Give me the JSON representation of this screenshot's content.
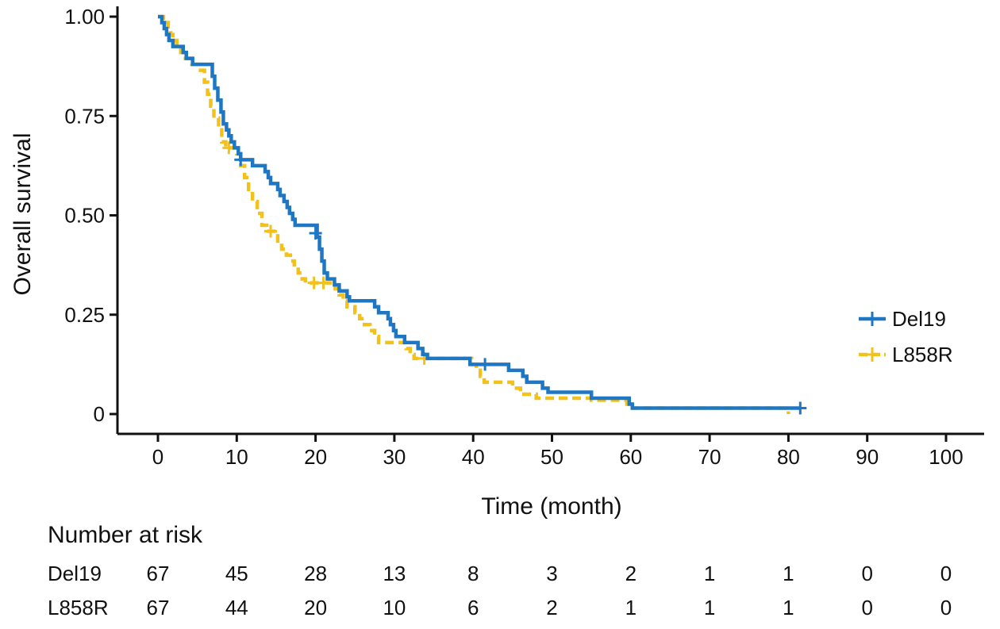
{
  "chart_data": {
    "type": "line",
    "subtype": "kaplan-meier step",
    "xlabel": "Time (month)",
    "ylabel": "Overall survival",
    "xlim": [
      0,
      100
    ],
    "ylim": [
      0,
      1
    ],
    "x_ticks": [
      0,
      10,
      20,
      30,
      40,
      50,
      60,
      70,
      80,
      90,
      100
    ],
    "x_tick_labels": [
      "0",
      "10",
      "20",
      "30",
      "40",
      "50",
      "60",
      "70",
      "80",
      "90",
      "100"
    ],
    "y_ticks": [
      0,
      0.25,
      0.5,
      0.75,
      1.0
    ],
    "y_tick_labels": [
      "0",
      "0.25",
      "0.50",
      "0.75",
      "1.00"
    ],
    "grid": false,
    "legend_position": "right",
    "series": [
      {
        "name": "Del19",
        "color": "#1f77c4",
        "line_style": "solid",
        "steps": [
          [
            0,
            1.0
          ],
          [
            0.5,
            0.985
          ],
          [
            0.8,
            0.97
          ],
          [
            1.1,
            0.955
          ],
          [
            1.4,
            0.94
          ],
          [
            1.9,
            0.925
          ],
          [
            3.2,
            0.91
          ],
          [
            3.6,
            0.895
          ],
          [
            4.4,
            0.88
          ],
          [
            6.9,
            0.85
          ],
          [
            7.2,
            0.82
          ],
          [
            7.6,
            0.79
          ],
          [
            8.0,
            0.76
          ],
          [
            8.3,
            0.73
          ],
          [
            8.7,
            0.715
          ],
          [
            9.0,
            0.7
          ],
          [
            9.3,
            0.685
          ],
          [
            9.7,
            0.67
          ],
          [
            10.2,
            0.655
          ],
          [
            10.5,
            0.64
          ],
          [
            12.0,
            0.625
          ],
          [
            13.6,
            0.61
          ],
          [
            14.0,
            0.595
          ],
          [
            14.3,
            0.58
          ],
          [
            15.2,
            0.565
          ],
          [
            15.5,
            0.55
          ],
          [
            16.0,
            0.535
          ],
          [
            16.4,
            0.52
          ],
          [
            16.7,
            0.505
          ],
          [
            17.1,
            0.49
          ],
          [
            17.4,
            0.475
          ],
          [
            20.2,
            0.445
          ],
          [
            20.5,
            0.415
          ],
          [
            20.8,
            0.385
          ],
          [
            21.1,
            0.355
          ],
          [
            21.5,
            0.34
          ],
          [
            22.4,
            0.325
          ],
          [
            23.0,
            0.31
          ],
          [
            24.0,
            0.295
          ],
          [
            24.3,
            0.285
          ],
          [
            27.5,
            0.27
          ],
          [
            28.0,
            0.255
          ],
          [
            29.2,
            0.24
          ],
          [
            29.5,
            0.225
          ],
          [
            29.9,
            0.21
          ],
          [
            30.2,
            0.195
          ],
          [
            31.3,
            0.18
          ],
          [
            33.0,
            0.165
          ],
          [
            33.6,
            0.15
          ],
          [
            34.2,
            0.14
          ],
          [
            39.6,
            0.125
          ],
          [
            44.5,
            0.11
          ],
          [
            46.3,
            0.095
          ],
          [
            46.8,
            0.08
          ],
          [
            48.8,
            0.065
          ],
          [
            49.5,
            0.055
          ],
          [
            55.0,
            0.04
          ],
          [
            59.8,
            0.025
          ],
          [
            60.2,
            0.015
          ],
          [
            81.5,
            0.015
          ]
        ],
        "censor_marks": [
          [
            10.5,
            0.64
          ],
          [
            20.0,
            0.455
          ],
          [
            41.5,
            0.125
          ],
          [
            81.5,
            0.015
          ]
        ]
      },
      {
        "name": "L858R",
        "color": "#f2c21b",
        "line_style": "dashed",
        "steps": [
          [
            0,
            1.0
          ],
          [
            0.7,
            0.985
          ],
          [
            1.3,
            0.97
          ],
          [
            1.6,
            0.955
          ],
          [
            1.9,
            0.94
          ],
          [
            2.4,
            0.925
          ],
          [
            2.9,
            0.91
          ],
          [
            3.2,
            0.895
          ],
          [
            4.3,
            0.88
          ],
          [
            5.1,
            0.865
          ],
          [
            5.9,
            0.835
          ],
          [
            6.3,
            0.805
          ],
          [
            6.7,
            0.775
          ],
          [
            7.1,
            0.745
          ],
          [
            7.7,
            0.715
          ],
          [
            8.1,
            0.685
          ],
          [
            8.6,
            0.67
          ],
          [
            10.0,
            0.655
          ],
          [
            10.5,
            0.625
          ],
          [
            11.0,
            0.595
          ],
          [
            11.5,
            0.565
          ],
          [
            12.0,
            0.535
          ],
          [
            12.6,
            0.505
          ],
          [
            13.2,
            0.475
          ],
          [
            13.8,
            0.46
          ],
          [
            15.2,
            0.43
          ],
          [
            15.7,
            0.415
          ],
          [
            16.3,
            0.4
          ],
          [
            16.8,
            0.385
          ],
          [
            17.3,
            0.37
          ],
          [
            17.8,
            0.355
          ],
          [
            18.3,
            0.34
          ],
          [
            18.7,
            0.33
          ],
          [
            22.5,
            0.315
          ],
          [
            23.0,
            0.3
          ],
          [
            23.5,
            0.285
          ],
          [
            24.0,
            0.27
          ],
          [
            25.0,
            0.255
          ],
          [
            25.6,
            0.24
          ],
          [
            26.2,
            0.225
          ],
          [
            26.9,
            0.21
          ],
          [
            27.5,
            0.195
          ],
          [
            28.0,
            0.18
          ],
          [
            31.5,
            0.165
          ],
          [
            32.0,
            0.15
          ],
          [
            32.5,
            0.14
          ],
          [
            39.8,
            0.125
          ],
          [
            40.4,
            0.11
          ],
          [
            40.9,
            0.095
          ],
          [
            41.4,
            0.08
          ],
          [
            45.0,
            0.065
          ],
          [
            46.0,
            0.05
          ],
          [
            48.0,
            0.04
          ],
          [
            55.0,
            0.035
          ],
          [
            59.5,
            0.025
          ],
          [
            60.2,
            0.015
          ],
          [
            79.8,
            0.015
          ],
          [
            80.0,
            0.0
          ]
        ],
        "censor_marks": [
          [
            9.0,
            0.67
          ],
          [
            14.3,
            0.46
          ],
          [
            19.8,
            0.33
          ],
          [
            21.0,
            0.33
          ],
          [
            33.8,
            0.14
          ]
        ]
      }
    ],
    "risk_table": {
      "title": "Number at risk",
      "rows": [
        {
          "label": "Del19",
          "values": [
            "67",
            "45",
            "28",
            "13",
            "8",
            "3",
            "2",
            "1",
            "1",
            "0",
            "0"
          ]
        },
        {
          "label": "L858R",
          "values": [
            "67",
            "44",
            "20",
            "10",
            "6",
            "2",
            "1",
            "1",
            "1",
            "0",
            "0"
          ]
        }
      ]
    }
  }
}
